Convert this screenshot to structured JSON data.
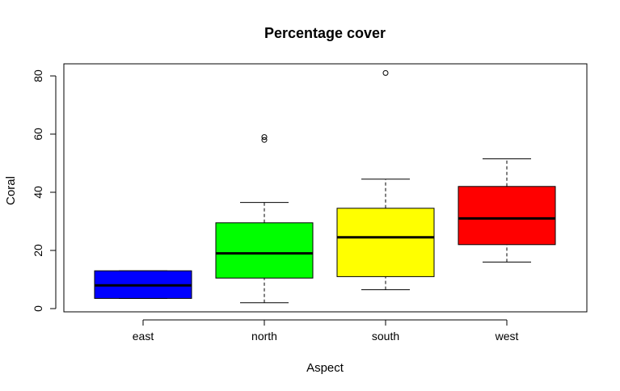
{
  "chart_data": {
    "type": "boxplot",
    "title": "Percentage cover",
    "xlabel": "Aspect",
    "ylabel": "Coral",
    "categories": [
      "east",
      "north",
      "south",
      "west"
    ],
    "ylim": [
      0,
      80
    ],
    "yticks": [
      0,
      20,
      40,
      60,
      80
    ],
    "grid": false,
    "legend": "none",
    "boxes": [
      {
        "category": "east",
        "color": "#0000ff",
        "whisker_low": 3.5,
        "q1": 3.5,
        "median": 8,
        "q3": 13,
        "whisker_high": 13,
        "outliers": []
      },
      {
        "category": "north",
        "color": "#00ff00",
        "whisker_low": 2,
        "q1": 10.5,
        "median": 19,
        "q3": 29.5,
        "whisker_high": 36.5,
        "outliers": [
          58,
          59
        ]
      },
      {
        "category": "south",
        "color": "#ffff00",
        "whisker_low": 6.5,
        "q1": 11,
        "median": 24.5,
        "q3": 34.5,
        "whisker_high": 44.5,
        "outliers": [
          81
        ]
      },
      {
        "category": "west",
        "color": "#ff0000",
        "whisker_low": 16,
        "q1": 22,
        "median": 31,
        "q3": 42,
        "whisker_high": 51.5,
        "outliers": []
      }
    ]
  }
}
